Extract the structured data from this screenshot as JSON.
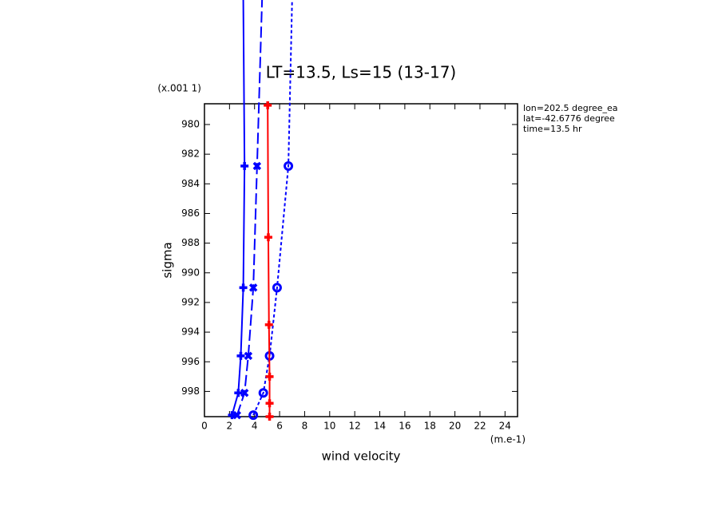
{
  "chart_data": {
    "type": "line",
    "title": "LT=13.5, Ls=15 (13-17)",
    "xlabel": "wind velocity",
    "ylabel": "sigma",
    "x_unit": "(m.e-1)",
    "y_unit": "(x.001 1)",
    "annotations": [
      "lon=202.5 degree_ea",
      "lat=-42.6776 degree",
      "time=13.5 hr"
    ],
    "xlim": [
      0,
      25
    ],
    "xticks": [
      0,
      2,
      4,
      6,
      8,
      10,
      12,
      14,
      16,
      18,
      20,
      22,
      24
    ],
    "ylim": [
      999.7,
      978.6
    ],
    "yticks": [
      980,
      982,
      984,
      986,
      988,
      990,
      992,
      994,
      996,
      998
    ],
    "series": [
      {
        "color": "#0000ff",
        "style": "solid",
        "marker": "plus",
        "x": [
          2.2,
          2.7,
          2.9,
          3.1,
          3.2,
          3.1
        ],
        "y": [
          999.6,
          998.1,
          995.6,
          991,
          982.8,
          971.6
        ]
      },
      {
        "color": "#0000ff",
        "style": "dashed",
        "marker": "cross",
        "x": [
          2.6,
          3.2,
          3.5,
          3.9,
          4.2,
          4.6
        ],
        "y": [
          999.6,
          998.1,
          995.6,
          991,
          982.8,
          971.6
        ]
      },
      {
        "color": "#0000ff",
        "style": "dotted",
        "marker": "circle",
        "x": [
          3.9,
          4.7,
          5.2,
          5.8,
          6.7,
          7.0
        ],
        "y": [
          999.6,
          998.1,
          995.6,
          991,
          982.8,
          971.6
        ]
      },
      {
        "color": "#ff0000",
        "style": "solid",
        "marker": "plus",
        "x": [
          5.2,
          5.2,
          5.2,
          5.15,
          5.1,
          5.05
        ],
        "y": [
          999.7,
          998.8,
          997,
          993.5,
          987.6,
          978.7
        ]
      }
    ]
  }
}
